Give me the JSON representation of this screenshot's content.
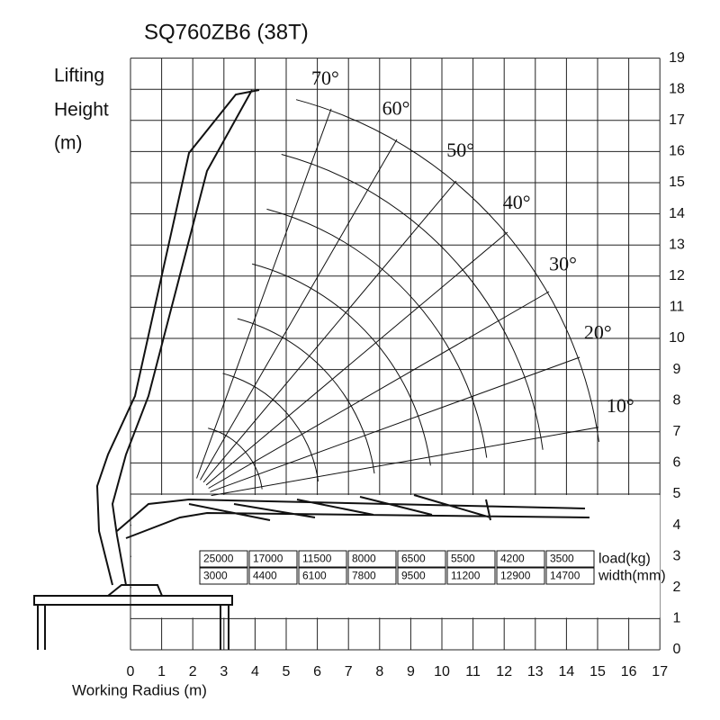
{
  "header": {
    "title": "SQ760ZB6 (38T)"
  },
  "y_axis": {
    "label_lines": [
      "Lifting",
      "Height",
      "(m)"
    ],
    "ticks": [
      0,
      1,
      2,
      3,
      4,
      5,
      6,
      7,
      8,
      9,
      10,
      11,
      12,
      13,
      14,
      15,
      16,
      17,
      18,
      19
    ]
  },
  "x_axis": {
    "label": "Working Radius (m)",
    "ticks": [
      0,
      1,
      2,
      3,
      4,
      5,
      6,
      7,
      8,
      9,
      10,
      11,
      12,
      13,
      14,
      15,
      16,
      17
    ]
  },
  "angles": [
    "70°",
    "60°",
    "50°",
    "40°",
    "30°",
    "20°",
    "10°"
  ],
  "table": {
    "rows": [
      [
        "25000",
        "17000",
        "11500",
        "8000",
        "6500",
        "5500",
        "4200",
        "3500"
      ],
      [
        "3000",
        "4400",
        "6100",
        "7800",
        "9500",
        "11200",
        "12900",
        "14700"
      ]
    ],
    "row_labels": [
      "load(kg)",
      "width(mm)"
    ]
  }
}
